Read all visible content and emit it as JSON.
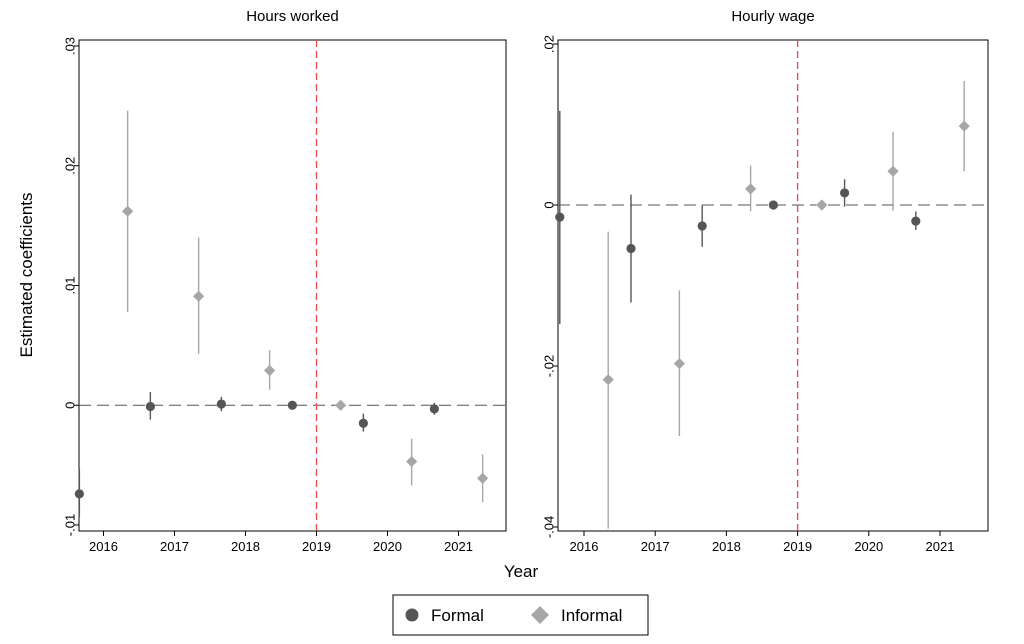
{
  "figure": {
    "xlabel": "Year",
    "ylabel": "Estimated coefficients",
    "legend": {
      "placement": "bottom-center",
      "entries": [
        {
          "name": "Formal",
          "marker": "circle",
          "color": "#555555"
        },
        {
          "name": "Informal",
          "marker": "diamond",
          "color": "#a6a6a6"
        }
      ]
    },
    "colors": {
      "formal": "#555555",
      "informal": "#a6a6a6",
      "event_line": "#e8474c"
    }
  },
  "chart_data": [
    {
      "type": "scatter",
      "title": "Hours worked",
      "xlabel": "Year",
      "ylabel": "Estimated coefficients",
      "categories": [
        "2016",
        "2017",
        "2018",
        "2019",
        "2020",
        "2021"
      ],
      "yticks": [
        -0.01,
        0,
        0.01,
        0.02,
        0.03
      ],
      "ytick_labels": [
        "-.01",
        "0",
        ".01",
        ".02",
        ".03"
      ],
      "ylim": [
        -0.0105,
        0.0305
      ],
      "reference_line_y": 0,
      "event_line_x": "2019",
      "series": [
        {
          "name": "Formal",
          "marker": "circle",
          "values": [
            -0.0074,
            -0.0001,
            0.0001,
            0.0,
            -0.0015,
            -0.0003
          ],
          "ci_low": [
            -0.0093,
            -0.0012,
            -0.0005,
            0.0,
            -0.0022,
            -0.0008
          ],
          "ci_high": [
            -0.0053,
            0.0011,
            0.0007,
            0.0,
            -0.0007,
            0.0002
          ]
        },
        {
          "name": "Informal",
          "marker": "diamond",
          "values": [
            0.0162,
            0.0091,
            0.0029,
            0.0,
            -0.0047,
            -0.0061
          ],
          "ci_low": [
            0.0078,
            0.0043,
            0.0013,
            0.0,
            -0.0067,
            -0.0081
          ],
          "ci_high": [
            0.0246,
            0.014,
            0.0046,
            0.0,
            -0.0028,
            -0.0041
          ]
        }
      ]
    },
    {
      "type": "scatter",
      "title": "Hourly wage",
      "xlabel": "Year",
      "ylabel": "",
      "categories": [
        "2016",
        "2017",
        "2018",
        "2019",
        "2020",
        "2021"
      ],
      "yticks": [
        -0.04,
        -0.02,
        0,
        0.02
      ],
      "ytick_labels": [
        "-.04",
        "-.02",
        "0",
        ".02"
      ],
      "ylim": [
        -0.0405,
        0.0205
      ],
      "reference_line_y": 0,
      "event_line_x": "2019",
      "series": [
        {
          "name": "Formal",
          "marker": "circle",
          "values": [
            -0.0015,
            -0.0054,
            -0.0026,
            0.0,
            0.0015,
            -0.002
          ],
          "ci_low": [
            -0.0148,
            -0.0121,
            -0.0052,
            0.0,
            -0.0002,
            -0.0031
          ],
          "ci_high": [
            0.0117,
            0.0013,
            0.0,
            0.0,
            0.0032,
            -0.0008
          ]
        },
        {
          "name": "Informal",
          "marker": "diamond",
          "values": [
            -0.0217,
            -0.0197,
            0.002,
            0.0,
            0.0042,
            0.0098
          ],
          "ci_low": [
            -0.0402,
            -0.0287,
            -0.0008,
            0.0,
            -0.0007,
            0.0042
          ],
          "ci_high": [
            -0.0033,
            -0.0106,
            0.0049,
            0.0,
            0.0091,
            0.0154
          ]
        }
      ]
    }
  ]
}
